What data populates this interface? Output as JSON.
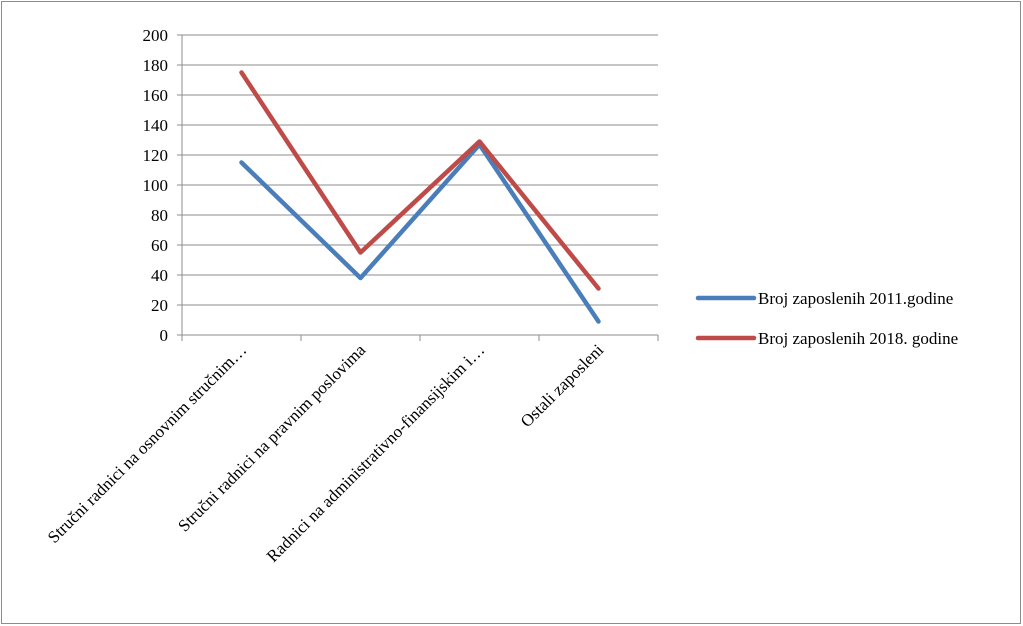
{
  "chart_data": {
    "type": "line",
    "title": "",
    "xlabel": "",
    "ylabel": "",
    "ylim": [
      0,
      200
    ],
    "yticks": [
      0,
      20,
      40,
      60,
      80,
      100,
      120,
      140,
      160,
      180,
      200
    ],
    "grid": true,
    "legend_position": "right",
    "categories": [
      "Stručni radnici na osnovnim stručnim…",
      "Stručni radnici na pravnim poslovima",
      "Radnici na administrativno-finansijskim i…",
      "Ostali zaposleni"
    ],
    "series": [
      {
        "name": "Broj zaposlenih 2011.godine",
        "color": "#4a7ebb",
        "values": [
          115,
          38,
          127,
          9
        ]
      },
      {
        "name": "Broj zaposlenih 2018. godine",
        "color": "#be4b48",
        "values": [
          175,
          55,
          129,
          31
        ]
      }
    ]
  }
}
